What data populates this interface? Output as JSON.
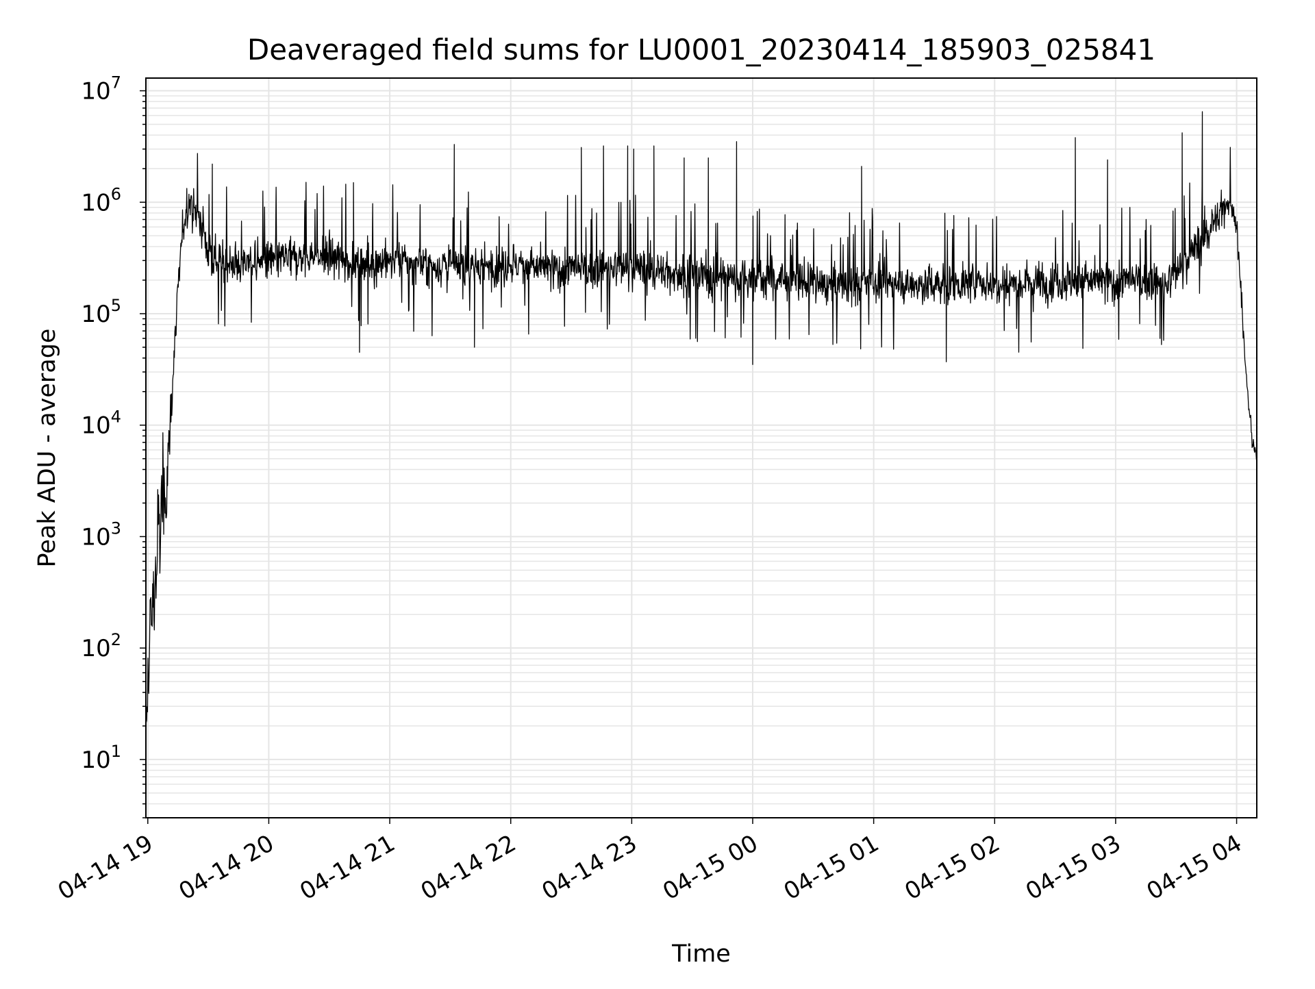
{
  "chart_data": {
    "type": "line",
    "title": "Deaveraged field sums for LU0001_20230414_185903_025841",
    "xlabel": "Time",
    "ylabel": "Peak ADU - average",
    "x_scale": "time",
    "y_scale": "log",
    "xlim": [
      "2023-04-14 18:59:03",
      "2023-04-15 04:10:00"
    ],
    "ylim": [
      3,
      13000000
    ],
    "x_tick_labels": [
      "04-14 19",
      "04-14 20",
      "04-14 21",
      "04-14 22",
      "04-14 23",
      "04-15 00",
      "04-15 01",
      "04-15 02",
      "04-15 03",
      "04-15 04"
    ],
    "y_tick_labels": [
      {
        "base": "10",
        "exp": "1"
      },
      {
        "base": "10",
        "exp": "2"
      },
      {
        "base": "10",
        "exp": "3"
      },
      {
        "base": "10",
        "exp": "4"
      },
      {
        "base": "10",
        "exp": "5"
      },
      {
        "base": "10",
        "exp": "6"
      },
      {
        "base": "10",
        "exp": "7"
      }
    ],
    "grid": true,
    "legend": "none",
    "line_color": "#000000",
    "grid_color": "#e5e5e5",
    "series": [
      {
        "x": [
          "2023-04-14 18:59",
          "2023-04-14 19:01",
          "2023-04-14 19:03",
          "2023-04-14 19:05",
          "2023-04-14 19:07",
          "2023-04-14 19:09",
          "2023-04-14 19:11",
          "2023-04-14 19:13",
          "2023-04-14 19:15",
          "2023-04-14 19:17",
          "2023-04-14 19:19",
          "2023-04-14 19:21",
          "2023-04-14 19:24",
          "2023-04-14 19:27",
          "2023-04-14 19:30",
          "2023-04-14 19:35",
          "2023-04-14 19:45",
          "2023-04-14 20:00",
          "2023-04-14 20:15",
          "2023-04-14 20:30",
          "2023-04-14 20:45",
          "2023-04-14 21:00",
          "2023-04-14 21:20",
          "2023-04-14 21:40",
          "2023-04-14 22:00",
          "2023-04-14 22:20",
          "2023-04-14 22:40",
          "2023-04-14 23:00",
          "2023-04-14 23:20",
          "2023-04-14 23:40",
          "2023-04-15 00:00",
          "2023-04-15 00:20",
          "2023-04-15 00:40",
          "2023-04-15 01:00",
          "2023-04-15 01:20",
          "2023-04-15 01:40",
          "2023-04-15 02:00",
          "2023-04-15 02:20",
          "2023-04-15 02:40",
          "2023-04-15 03:00",
          "2023-04-15 03:15",
          "2023-04-15 03:25",
          "2023-04-15 03:35",
          "2023-04-15 03:50",
          "2023-04-15 03:55",
          "2023-04-15 03:58",
          "2023-04-15 04:00",
          "2023-04-15 04:02",
          "2023-04-15 04:04",
          "2023-04-15 04:06",
          "2023-04-15 04:08",
          "2023-04-15 04:10"
        ],
        "y": [
          10,
          150,
          300,
          800,
          1500,
          3000,
          10000,
          40000,
          150000,
          500000,
          900000,
          1000000,
          800000,
          600000,
          350000,
          300000,
          280000,
          300000,
          320000,
          330000,
          280000,
          300000,
          270000,
          260000,
          280000,
          250000,
          250000,
          260000,
          230000,
          220000,
          210000,
          200000,
          180000,
          190000,
          180000,
          185000,
          190000,
          195000,
          200000,
          190000,
          200000,
          180000,
          300000,
          700000,
          1000000,
          900000,
          600000,
          200000,
          40000,
          15000,
          7000,
          5000
        ],
        "peaks": {
          "x": [
            "2023-04-14 19:32",
            "2023-04-14 20:42",
            "2023-04-14 21:32",
            "2023-04-14 22:35",
            "2023-04-14 22:46",
            "2023-04-14 22:58",
            "2023-04-14 23:01",
            "2023-04-14 23:11",
            "2023-04-14 23:26",
            "2023-04-14 23:38",
            "2023-04-14 23:52",
            "2023-04-15 00:54",
            "2023-04-15 02:40",
            "2023-04-15 02:56",
            "2023-04-15 03:33",
            "2023-04-15 03:43"
          ],
          "y": [
            2200000,
            1500000,
            3300000,
            3100000,
            3200000,
            3200000,
            3000000,
            3200000,
            2500000,
            2500000,
            3500000,
            2100000,
            3800000,
            2400000,
            4200000,
            6500000
          ]
        },
        "dips": {
          "x": [
            "2023-04-14 20:45",
            "2023-04-14 21:42",
            "2023-04-15 00:00",
            "2023-04-15 01:36",
            "2023-04-15 03:22"
          ],
          "y": [
            45000,
            50000,
            35000,
            37000,
            60000
          ]
        }
      }
    ]
  }
}
